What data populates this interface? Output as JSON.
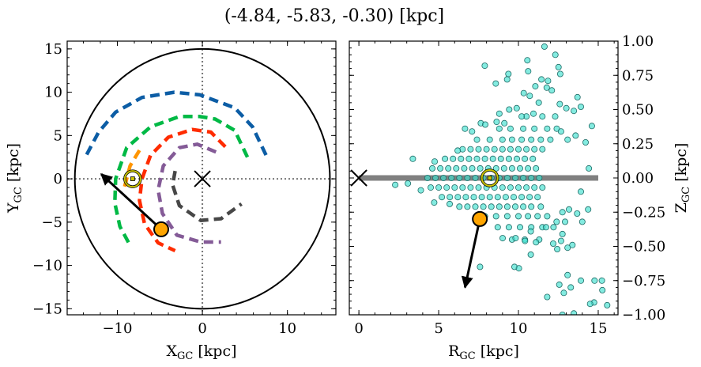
{
  "title": "(-4.84, -5.83, -0.30) [kpc]",
  "colors": {
    "arm_blue": "#0C5DA5",
    "arm_green": "#00B945",
    "arm_orange": "#FF9500",
    "arm_red": "#FF2C00",
    "arm_purple": "#845B97",
    "arm_grey": "#474747",
    "star": "#FFA500",
    "sun": "#C8C200",
    "scatter": "#40E0D0",
    "plane": "#808080"
  },
  "chart_data": [
    {
      "type": "line",
      "panel": "left",
      "xlabel": {
        "main": "X",
        "sub": "GC",
        "unit": " [kpc]"
      },
      "ylabel": {
        "main": "Y",
        "sub": "GC",
        "unit": " [kpc]"
      },
      "xlim": [
        -15.9,
        15.7
      ],
      "ylim": [
        -15.7,
        15.9
      ],
      "xticks": [
        -10,
        0,
        10
      ],
      "xtick_labels": [
        "−10",
        "0",
        "10"
      ],
      "yticks": [
        -15,
        -10,
        -5,
        0,
        5,
        10,
        15
      ],
      "ytick_labels": [
        "−15",
        "−10",
        "−5",
        "0",
        "5",
        "10",
        "15"
      ],
      "grid": false,
      "boundary_circle_radius": 15,
      "reference_lines": {
        "x": 0,
        "y": 0,
        "style": "dotted"
      },
      "galactic_center": {
        "x": 0,
        "y": 0,
        "marker": "x"
      },
      "sun": {
        "x": -8.2,
        "y": 0.0
      },
      "star": {
        "x": -4.84,
        "y": -5.83
      },
      "velocity_arrow_tip": {
        "x": -11.9,
        "y": 0.55
      },
      "arms": [
        {
          "color": "arm_blue",
          "points": [
            [
              -13.6,
              2.8
            ],
            [
              -12.2,
              5.4
            ],
            [
              -10.2,
              7.7
            ],
            [
              -7.1,
              9.4
            ],
            [
              -3.3,
              10.0
            ],
            [
              -0.3,
              9.7
            ],
            [
              3.8,
              8.2
            ],
            [
              5.9,
              6.0
            ],
            [
              7.5,
              2.7
            ]
          ]
        },
        {
          "color": "arm_green",
          "points": [
            [
              5.3,
              2.5
            ],
            [
              3.8,
              5.6
            ],
            [
              1.5,
              6.9
            ],
            [
              -0.3,
              7.2
            ],
            [
              -2.7,
              7.2
            ],
            [
              -6.1,
              6.0
            ],
            [
              -8.9,
              3.6
            ],
            [
              -10.2,
              0
            ],
            [
              -10.3,
              -2.8
            ],
            [
              -9.7,
              -5.5
            ],
            [
              -8.6,
              -7.5
            ]
          ]
        },
        {
          "color": "arm_orange",
          "points": [
            [
              -7.4,
              3.3
            ],
            [
              -8.5,
              1.5
            ],
            [
              -9.2,
              -1.1
            ]
          ]
        },
        {
          "color": "arm_red",
          "points": [
            [
              2.7,
              3.7
            ],
            [
              1.0,
              5.4
            ],
            [
              -1.2,
              5.7
            ],
            [
              -4.0,
              4.8
            ],
            [
              -6.1,
              2.7
            ],
            [
              -7.1,
              0
            ],
            [
              -7.4,
              -2.5
            ],
            [
              -6.8,
              -5.2
            ],
            [
              -5.2,
              -7.4
            ],
            [
              -3.2,
              -8.3
            ]
          ]
        },
        {
          "color": "arm_purple",
          "points": [
            [
              1.6,
              3.1
            ],
            [
              -0.6,
              4.0
            ],
            [
              -2.7,
              3.6
            ],
            [
              -4.6,
              1.5
            ],
            [
              -5.2,
              -1.3
            ],
            [
              -4.7,
              -4.0
            ],
            [
              -3.0,
              -6.5
            ],
            [
              -0.2,
              -7.3
            ],
            [
              2.2,
              -7.3
            ]
          ]
        },
        {
          "color": "arm_grey",
          "points": [
            [
              -3.2,
              0.9
            ],
            [
              -3.5,
              -0.7
            ],
            [
              -2.7,
              -3.1
            ],
            [
              -0.2,
              -4.8
            ],
            [
              2.2,
              -4.6
            ],
            [
              4.6,
              -2.9
            ]
          ]
        }
      ]
    },
    {
      "type": "scatter",
      "panel": "right",
      "xlabel": {
        "main": "R",
        "sub": "GC",
        "unit": " [kpc]"
      },
      "ylabel": {
        "main": "Z",
        "sub": "GC",
        "unit": " [kpc]"
      },
      "xlim": [
        -0.6,
        16.24
      ],
      "ylim": [
        -1.0,
        1.0
      ],
      "xticks": [
        0,
        5,
        10,
        15
      ],
      "xtick_labels": [
        "0",
        "5",
        "10",
        "15"
      ],
      "yticks": [
        -1.0,
        -0.75,
        -0.5,
        -0.25,
        0.0,
        0.25,
        0.5,
        0.75,
        1.0
      ],
      "ytick_labels": [
        "−1.00",
        "−0.75",
        "−0.50",
        "−0.25",
        "0.00",
        "0.25",
        "0.50",
        "0.75",
        "1.00"
      ],
      "yaxis_side": "right",
      "grid": false,
      "galactic_plane": {
        "r_from": 0,
        "r_to": 15,
        "z": 0
      },
      "galactic_center": {
        "r": 0,
        "z": 0,
        "marker": "x"
      },
      "sun": {
        "r": 8.2,
        "z": 0.0
      },
      "star": {
        "r": 7.58,
        "z": -0.3
      },
      "velocity_arrow_tip": {
        "r": 6.65,
        "z": -0.8
      },
      "cluster_rows": [
        {
          "z": 0.0,
          "r": [
            4.3,
            4.8,
            5.3,
            5.8,
            6.3,
            6.8,
            7.3,
            7.8,
            8.3,
            8.8,
            9.3,
            9.8,
            10.3,
            10.8,
            11.3
          ]
        },
        {
          "z": 0.07,
          "r": [
            4.6,
            5.1,
            5.6,
            6.1,
            6.6,
            7.1,
            7.6,
            8.1,
            8.6,
            9.1,
            9.6,
            10.1,
            10.6,
            11.1
          ]
        },
        {
          "z": -0.07,
          "r": [
            4.5,
            5.0,
            5.5,
            6.0,
            6.5,
            7.0,
            7.5,
            8.0,
            8.5,
            9.0,
            9.5,
            10.0,
            10.5,
            11.0,
            11.5
          ]
        },
        {
          "z": 0.14,
          "r": [
            5.4,
            5.9,
            6.4,
            6.9,
            7.4,
            7.9,
            8.4,
            8.9,
            9.4,
            9.9,
            10.4,
            10.9
          ]
        },
        {
          "z": -0.14,
          "r": [
            5.2,
            5.7,
            6.2,
            6.7,
            7.2,
            7.7,
            8.2,
            8.7,
            9.2,
            9.7,
            10.2,
            10.7,
            11.2
          ]
        },
        {
          "z": 0.21,
          "r": [
            6.5,
            7.0,
            7.5,
            8.0,
            8.5,
            9.0,
            9.5,
            10.0,
            10.5,
            11.0,
            11.5
          ]
        },
        {
          "z": -0.21,
          "r": [
            6.3,
            6.8,
            7.3,
            7.8,
            8.3,
            8.8,
            9.3,
            9.8,
            10.3,
            10.8,
            11.4
          ]
        },
        {
          "z": 0.28,
          "r": [
            7.4,
            8.2,
            9.0,
            9.6,
            10.2,
            10.8,
            11.4,
            12.0
          ]
        },
        {
          "z": -0.28,
          "r": [
            7.9,
            8.6,
            9.3,
            10.0,
            10.6,
            11.2,
            11.8
          ]
        },
        {
          "z": 0.36,
          "r": [
            8.8,
            9.5,
            10.3,
            11.0,
            11.8,
            12.4
          ]
        },
        {
          "z": -0.36,
          "r": [
            8.7,
            9.4,
            10.1,
            10.8,
            11.5,
            12.2
          ]
        },
        {
          "z": 0.45,
          "r": [
            10.5,
            11.5,
            12.3
          ]
        },
        {
          "z": -0.45,
          "r": [
            9.6,
            10.4,
            11.3
          ]
        }
      ],
      "points": [
        [
          11.63,
          0.96
        ],
        [
          12.31,
          0.9
        ],
        [
          10.56,
          0.86
        ],
        [
          7.89,
          0.82
        ],
        [
          10.61,
          0.78
        ],
        [
          12.51,
          0.81
        ],
        [
          12.62,
          0.76
        ],
        [
          9.37,
          0.76
        ],
        [
          9.29,
          0.72
        ],
        [
          8.58,
          0.69
        ],
        [
          11.44,
          0.72
        ],
        [
          11.85,
          0.71
        ],
        [
          11.06,
          0.67
        ],
        [
          11.77,
          0.66
        ],
        [
          10.33,
          0.62
        ],
        [
          10.71,
          0.6
        ],
        [
          12.09,
          0.64
        ],
        [
          13.7,
          0.59
        ],
        [
          11.27,
          0.55
        ],
        [
          12.59,
          0.54
        ],
        [
          9.89,
          0.51
        ],
        [
          9.42,
          0.5
        ],
        [
          8.8,
          0.47
        ],
        [
          13.91,
          0.52
        ],
        [
          13.47,
          0.49
        ],
        [
          13.0,
          0.51
        ],
        [
          10.2,
          0.45
        ],
        [
          10.94,
          0.47
        ],
        [
          14.6,
          0.38
        ],
        [
          7.64,
          0.4
        ],
        [
          7.92,
          0.39
        ],
        [
          8.63,
          0.41
        ],
        [
          9.12,
          0.4
        ],
        [
          6.65,
          0.36
        ],
        [
          7.09,
          0.34
        ],
        [
          13.58,
          0.31
        ],
        [
          14.21,
          0.26
        ],
        [
          12.67,
          0.34
        ],
        [
          13.08,
          0.28
        ],
        [
          6.19,
          0.2
        ],
        [
          3.38,
          0.14
        ],
        [
          14.41,
          0.07
        ],
        [
          4.75,
          0.12
        ],
        [
          2.28,
          -0.05
        ],
        [
          3.07,
          -0.04
        ],
        [
          3.88,
          -0.09
        ],
        [
          4.72,
          -0.18
        ],
        [
          5.69,
          -0.19
        ],
        [
          13.91,
          -0.1
        ],
        [
          14.37,
          -0.23
        ],
        [
          14.0,
          -0.32
        ],
        [
          13.68,
          -0.26
        ],
        [
          13.17,
          -0.23
        ],
        [
          12.76,
          -0.25
        ],
        [
          12.92,
          -0.32
        ],
        [
          12.39,
          -0.32
        ],
        [
          11.73,
          -0.36
        ],
        [
          12.76,
          -0.41
        ],
        [
          12.67,
          -0.46
        ],
        [
          13.38,
          -0.49
        ],
        [
          13.08,
          -0.51
        ],
        [
          12.43,
          -0.52
        ],
        [
          12.18,
          -0.48
        ],
        [
          11.1,
          -0.47
        ],
        [
          10.77,
          -0.56
        ],
        [
          10.41,
          -0.46
        ],
        [
          9.82,
          -0.44
        ],
        [
          9.01,
          -0.44
        ],
        [
          10.77,
          -0.39
        ],
        [
          9.75,
          -0.65
        ],
        [
          10.03,
          -0.66
        ],
        [
          7.59,
          -0.65
        ],
        [
          13.08,
          -0.71
        ],
        [
          12.56,
          -0.78
        ],
        [
          13.28,
          -0.8
        ],
        [
          12.84,
          -0.84
        ],
        [
          13.91,
          -0.75
        ],
        [
          14.77,
          -0.75
        ],
        [
          15.23,
          -0.75
        ],
        [
          15.26,
          -0.82
        ],
        [
          14.74,
          -0.91
        ],
        [
          14.49,
          -0.92
        ],
        [
          15.56,
          -0.93
        ],
        [
          11.8,
          -0.87
        ],
        [
          12.76,
          -1.0
        ],
        [
          13.47,
          -0.99
        ]
      ]
    }
  ]
}
